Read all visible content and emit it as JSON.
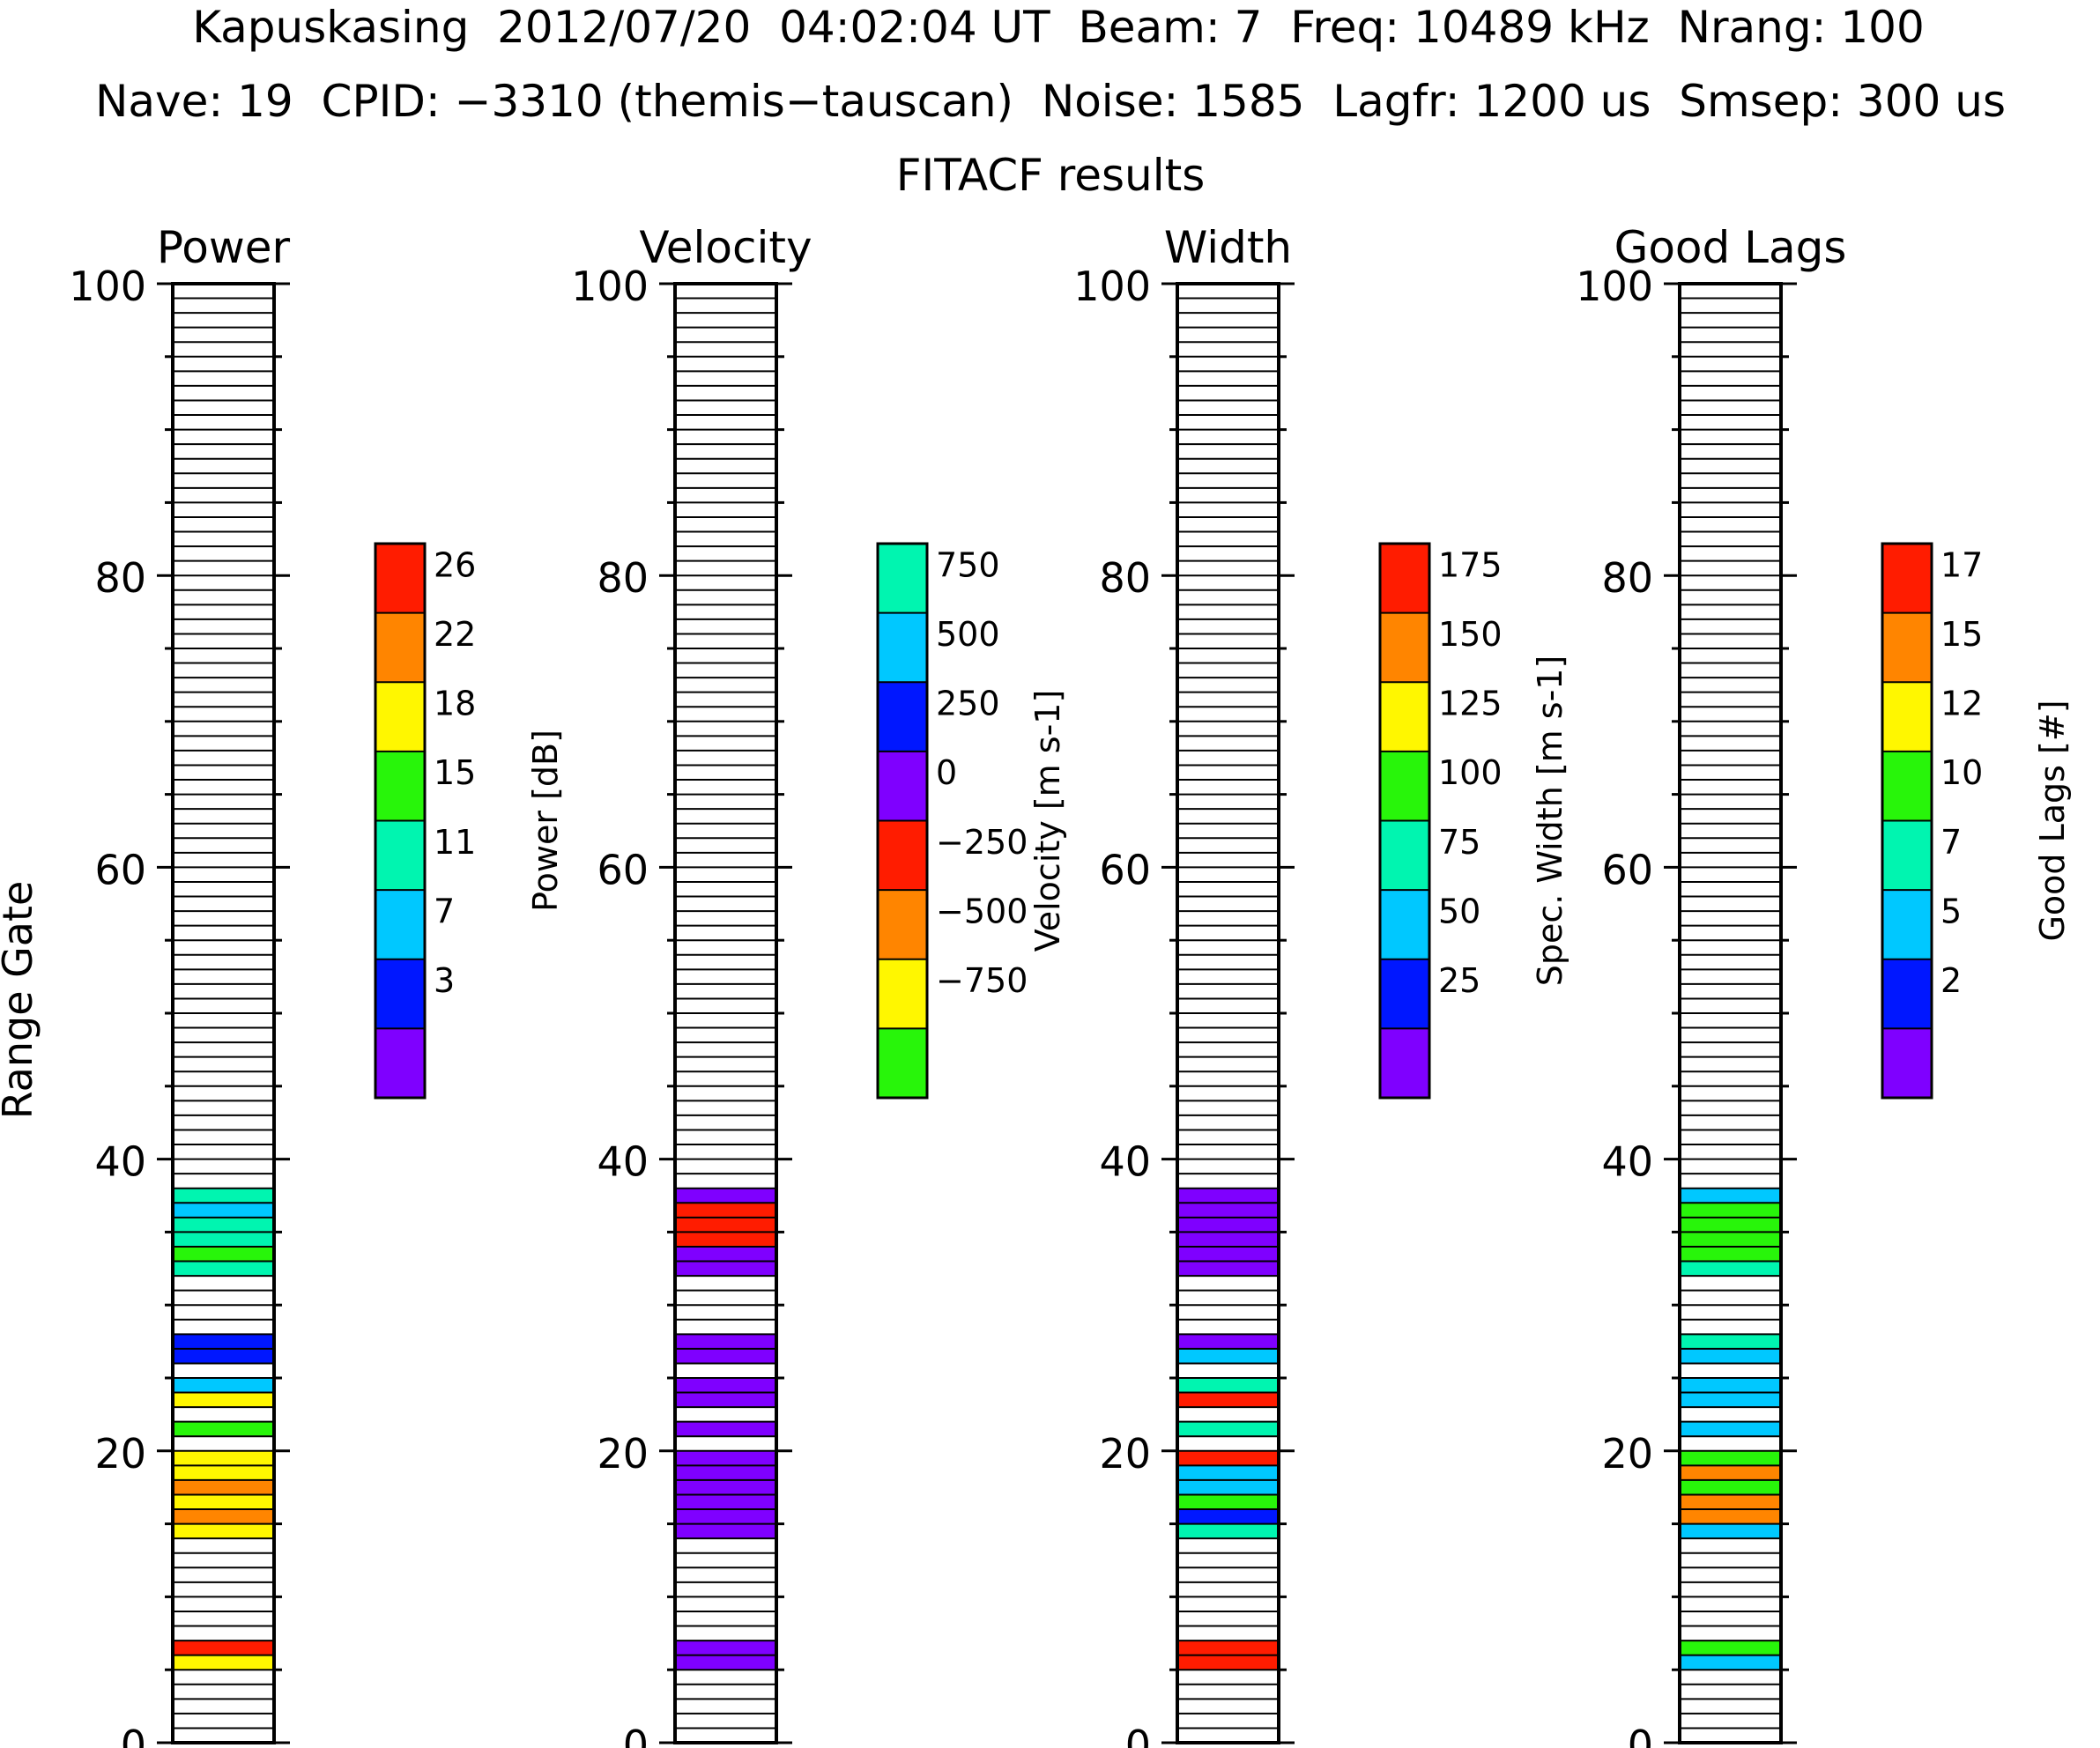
{
  "header": {
    "line1": "Kapuskasing  2012/07/20  04:02:04 UT  Beam: 7  Freq: 10489 kHz  Nrang: 100",
    "line2": "Nave: 19  CPID: −3310 (themis−tauscan)  Noise: 1585  Lagfr: 1200 us  Smsep: 300 us",
    "line3": "FITACF results"
  },
  "y_axis_label": "Range Gate",
  "colors": {
    "purple": "#7f00ff",
    "blue": "#0017ff",
    "cyan": "#00c8ff",
    "teal": "#00f5b0",
    "green": "#28f50a",
    "yellow": "#fff700",
    "orange": "#ff8500",
    "red": "#ff1c00"
  },
  "chart_data": [
    {
      "type": "bar",
      "title": "Power",
      "ylim": [
        0,
        100
      ],
      "yticks": [
        "0",
        "20",
        "40",
        "60",
        "80",
        "100"
      ],
      "bins": [
        "purple",
        "blue",
        "cyan",
        "teal",
        "green",
        "yellow",
        "orange",
        "red"
      ],
      "colorbar": {
        "label": "Power [dB]",
        "ticks": [
          "3",
          "7",
          "11",
          "15",
          "18",
          "22",
          "26"
        ]
      },
      "gates": [
        {
          "gate": 5,
          "bin": "yellow"
        },
        {
          "gate": 6,
          "bin": "red"
        },
        {
          "gate": 14,
          "bin": "yellow"
        },
        {
          "gate": 15,
          "bin": "orange"
        },
        {
          "gate": 16,
          "bin": "yellow"
        },
        {
          "gate": 17,
          "bin": "orange"
        },
        {
          "gate": 18,
          "bin": "yellow"
        },
        {
          "gate": 19,
          "bin": "yellow"
        },
        {
          "gate": 21,
          "bin": "green"
        },
        {
          "gate": 23,
          "bin": "yellow"
        },
        {
          "gate": 24,
          "bin": "cyan"
        },
        {
          "gate": 26,
          "bin": "blue"
        },
        {
          "gate": 27,
          "bin": "blue"
        },
        {
          "gate": 32,
          "bin": "teal"
        },
        {
          "gate": 33,
          "bin": "green"
        },
        {
          "gate": 34,
          "bin": "teal"
        },
        {
          "gate": 35,
          "bin": "teal"
        },
        {
          "gate": 36,
          "bin": "cyan"
        },
        {
          "gate": 37,
          "bin": "teal"
        }
      ]
    },
    {
      "type": "bar",
      "title": "Velocity",
      "ylim": [
        0,
        100
      ],
      "yticks": [
        "0",
        "20",
        "40",
        "60",
        "80",
        "100"
      ],
      "bins": [
        "green",
        "yellow",
        "orange",
        "red",
        "purple",
        "blue",
        "cyan",
        "teal"
      ],
      "colorbar": {
        "label": "Velocity [m s-1]",
        "ticks": [
          "−750",
          "−500",
          "−250",
          "0",
          "250",
          "500",
          "750"
        ]
      },
      "gates": [
        {
          "gate": 5,
          "bin": "purple"
        },
        {
          "gate": 6,
          "bin": "purple"
        },
        {
          "gate": 14,
          "bin": "purple"
        },
        {
          "gate": 15,
          "bin": "purple"
        },
        {
          "gate": 16,
          "bin": "purple"
        },
        {
          "gate": 17,
          "bin": "purple"
        },
        {
          "gate": 18,
          "bin": "purple"
        },
        {
          "gate": 19,
          "bin": "purple"
        },
        {
          "gate": 21,
          "bin": "purple"
        },
        {
          "gate": 23,
          "bin": "purple"
        },
        {
          "gate": 24,
          "bin": "purple"
        },
        {
          "gate": 26,
          "bin": "purple"
        },
        {
          "gate": 27,
          "bin": "purple"
        },
        {
          "gate": 32,
          "bin": "purple"
        },
        {
          "gate": 33,
          "bin": "purple"
        },
        {
          "gate": 34,
          "bin": "red"
        },
        {
          "gate": 35,
          "bin": "red"
        },
        {
          "gate": 36,
          "bin": "red"
        },
        {
          "gate": 37,
          "bin": "purple"
        }
      ]
    },
    {
      "type": "bar",
      "title": "Width",
      "ylim": [
        0,
        100
      ],
      "yticks": [
        "0",
        "20",
        "40",
        "60",
        "80",
        "100"
      ],
      "bins": [
        "purple",
        "blue",
        "cyan",
        "teal",
        "green",
        "yellow",
        "orange",
        "red"
      ],
      "colorbar": {
        "label": "Spec. Width [m s-1]",
        "ticks": [
          "25",
          "50",
          "75",
          "100",
          "125",
          "150",
          "175"
        ]
      },
      "gates": [
        {
          "gate": 5,
          "bin": "red"
        },
        {
          "gate": 6,
          "bin": "red"
        },
        {
          "gate": 14,
          "bin": "teal"
        },
        {
          "gate": 15,
          "bin": "blue"
        },
        {
          "gate": 16,
          "bin": "green"
        },
        {
          "gate": 17,
          "bin": "cyan"
        },
        {
          "gate": 18,
          "bin": "cyan"
        },
        {
          "gate": 19,
          "bin": "red"
        },
        {
          "gate": 21,
          "bin": "teal"
        },
        {
          "gate": 23,
          "bin": "red"
        },
        {
          "gate": 24,
          "bin": "teal"
        },
        {
          "gate": 26,
          "bin": "cyan"
        },
        {
          "gate": 27,
          "bin": "purple"
        },
        {
          "gate": 32,
          "bin": "purple"
        },
        {
          "gate": 33,
          "bin": "purple"
        },
        {
          "gate": 34,
          "bin": "purple"
        },
        {
          "gate": 35,
          "bin": "purple"
        },
        {
          "gate": 36,
          "bin": "purple"
        },
        {
          "gate": 37,
          "bin": "purple"
        }
      ]
    },
    {
      "type": "bar",
      "title": "Good Lags",
      "ylim": [
        0,
        100
      ],
      "yticks": [
        "0",
        "20",
        "40",
        "60",
        "80",
        "100"
      ],
      "bins": [
        "purple",
        "blue",
        "cyan",
        "teal",
        "green",
        "yellow",
        "orange",
        "red"
      ],
      "colorbar": {
        "label": "Good Lags [#]",
        "ticks": [
          "2",
          "5",
          "7",
          "10",
          "12",
          "15",
          "17"
        ]
      },
      "gates": [
        {
          "gate": 5,
          "bin": "cyan"
        },
        {
          "gate": 6,
          "bin": "green"
        },
        {
          "gate": 14,
          "bin": "cyan"
        },
        {
          "gate": 15,
          "bin": "orange"
        },
        {
          "gate": 16,
          "bin": "orange"
        },
        {
          "gate": 17,
          "bin": "green"
        },
        {
          "gate": 18,
          "bin": "orange"
        },
        {
          "gate": 19,
          "bin": "green"
        },
        {
          "gate": 21,
          "bin": "cyan"
        },
        {
          "gate": 23,
          "bin": "cyan"
        },
        {
          "gate": 24,
          "bin": "cyan"
        },
        {
          "gate": 26,
          "bin": "cyan"
        },
        {
          "gate": 27,
          "bin": "teal"
        },
        {
          "gate": 32,
          "bin": "teal"
        },
        {
          "gate": 33,
          "bin": "green"
        },
        {
          "gate": 34,
          "bin": "green"
        },
        {
          "gate": 35,
          "bin": "green"
        },
        {
          "gate": 36,
          "bin": "green"
        },
        {
          "gate": 37,
          "bin": "cyan"
        }
      ]
    }
  ]
}
